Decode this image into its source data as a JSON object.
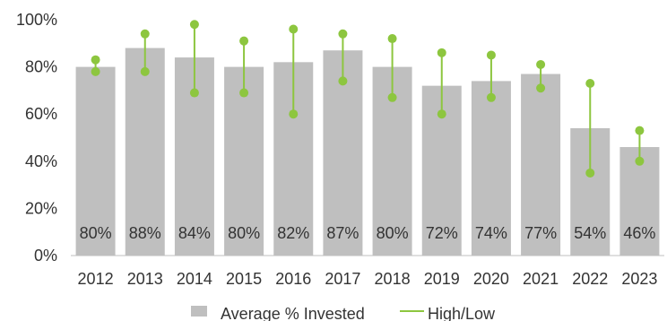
{
  "chart_data": {
    "type": "bar",
    "categories": [
      "2012",
      "2013",
      "2014",
      "2015",
      "2016",
      "2017",
      "2018",
      "2019",
      "2020",
      "2021",
      "2022",
      "2023"
    ],
    "series": [
      {
        "name": "Average % Invested",
        "values": [
          80,
          88,
          84,
          80,
          82,
          87,
          80,
          72,
          74,
          77,
          54,
          46
        ],
        "value_labels": [
          "80%",
          "88%",
          "84%",
          "80%",
          "82%",
          "87%",
          "80%",
          "72%",
          "74%",
          "77%",
          "54%",
          "46%"
        ],
        "color": "#bfbfbf"
      },
      {
        "name": "High/Low",
        "high": [
          83,
          94,
          98,
          91,
          96,
          94,
          92,
          86,
          85,
          81,
          73,
          53
        ],
        "low": [
          78,
          78,
          69,
          69,
          60,
          74,
          67,
          60,
          67,
          71,
          35,
          40
        ],
        "color": "#8dc63f"
      }
    ],
    "ylim": [
      0,
      100
    ],
    "yticks": [
      0,
      20,
      40,
      60,
      80,
      100
    ],
    "ytick_labels": [
      "0%",
      "20%",
      "40%",
      "60%",
      "80%",
      "100%"
    ],
    "title": "",
    "xlabel": "",
    "ylabel": "",
    "legend": {
      "placement": "bottom",
      "entries": [
        "Average % Invested",
        "High/Low"
      ]
    },
    "grid": false
  }
}
